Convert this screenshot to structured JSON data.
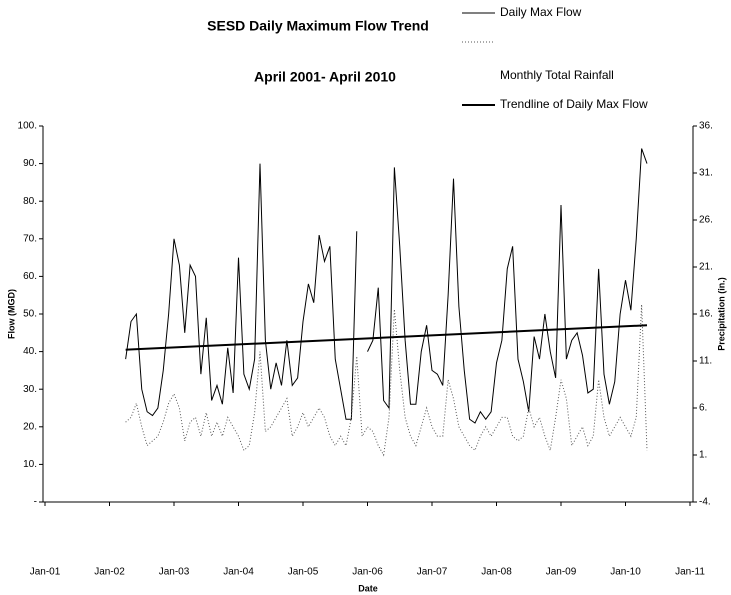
{
  "chart_data": {
    "type": "line",
    "title": "SESD Daily Maximum Flow Trend",
    "subtitle": "April 2001- April 2010",
    "xlabel": "Date",
    "ylabel": "Flow (MGD)",
    "y2label": "Precipitation (in.)",
    "xlim": [
      "2001-01",
      "2011-01"
    ],
    "xticks": [
      {
        "value": "2001-01",
        "label": "Jan-01"
      },
      {
        "value": "2002-01",
        "label": "Jan-02"
      },
      {
        "value": "2003-01",
        "label": "Jan-03"
      },
      {
        "value": "2004-01",
        "label": "Jan-04"
      },
      {
        "value": "2005-01",
        "label": "Jan-05"
      },
      {
        "value": "2006-01",
        "label": "Jan-06"
      },
      {
        "value": "2007-01",
        "label": "Jan-07"
      },
      {
        "value": "2008-01",
        "label": "Jan-08"
      },
      {
        "value": "2009-01",
        "label": "Jan-09"
      },
      {
        "value": "2010-01",
        "label": "Jan-10"
      },
      {
        "value": "2011-01",
        "label": "Jan-11"
      }
    ],
    "ylim": [
      0,
      100
    ],
    "yticks": [
      {
        "value": 0,
        "label": "-"
      },
      {
        "value": 10,
        "label": "10."
      },
      {
        "value": 20,
        "label": "20."
      },
      {
        "value": 30,
        "label": "30."
      },
      {
        "value": 40,
        "label": "40."
      },
      {
        "value": 50,
        "label": "50."
      },
      {
        "value": 60,
        "label": "60."
      },
      {
        "value": 70,
        "label": "70."
      },
      {
        "value": 80,
        "label": "80."
      },
      {
        "value": 90,
        "label": "90."
      },
      {
        "value": 100,
        "label": "100."
      }
    ],
    "y2lim": [
      -4,
      36
    ],
    "y2ticks": [
      {
        "value": -4,
        "label": "-4."
      },
      {
        "value": 1,
        "label": "1."
      },
      {
        "value": 6,
        "label": "6."
      },
      {
        "value": 11,
        "label": "11."
      },
      {
        "value": 16,
        "label": "16."
      },
      {
        "value": 21,
        "label": "21."
      },
      {
        "value": 26,
        "label": "26."
      },
      {
        "value": 31,
        "label": "31."
      },
      {
        "value": 36,
        "label": "36."
      }
    ],
    "x": [
      "2002-04",
      "2002-05",
      "2002-06",
      "2002-07",
      "2002-08",
      "2002-09",
      "2002-10",
      "2002-11",
      "2002-12",
      "2003-01",
      "2003-02",
      "2003-03",
      "2003-04",
      "2003-05",
      "2003-06",
      "2003-07",
      "2003-08",
      "2003-09",
      "2003-10",
      "2003-11",
      "2003-12",
      "2004-01",
      "2004-02",
      "2004-03",
      "2004-04",
      "2004-05",
      "2004-06",
      "2004-07",
      "2004-08",
      "2004-09",
      "2004-10",
      "2004-11",
      "2004-12",
      "2005-01",
      "2005-02",
      "2005-03",
      "2005-04",
      "2005-05",
      "2005-06",
      "2005-07",
      "2005-08",
      "2005-09",
      "2005-10",
      "2005-11",
      "2005-12",
      "2006-01",
      "2006-02",
      "2006-03",
      "2006-04",
      "2006-05",
      "2006-06",
      "2006-07",
      "2006-08",
      "2006-09",
      "2006-10",
      "2006-11",
      "2006-12",
      "2007-01",
      "2007-02",
      "2007-03",
      "2007-04",
      "2007-05",
      "2007-06",
      "2007-07",
      "2007-08",
      "2007-09",
      "2007-10",
      "2007-11",
      "2007-12",
      "2008-01",
      "2008-02",
      "2008-03",
      "2008-04",
      "2008-05",
      "2008-06",
      "2008-07",
      "2008-08",
      "2008-09",
      "2008-10",
      "2008-11",
      "2008-12",
      "2009-01",
      "2009-02",
      "2009-03",
      "2009-04",
      "2009-05",
      "2009-06",
      "2009-07",
      "2009-08",
      "2009-09",
      "2009-10",
      "2009-11",
      "2009-12",
      "2010-01",
      "2010-02",
      "2010-03",
      "2010-04",
      "2010-05"
    ],
    "series": [
      {
        "name": "Daily Max Flow",
        "color": "#000000",
        "style": "solid",
        "width": 1,
        "values": [
          38,
          48,
          50,
          30,
          24,
          23,
          25,
          35,
          50,
          70,
          63,
          45,
          63,
          60,
          34,
          49,
          27,
          31,
          26,
          41,
          29,
          65,
          34,
          30,
          38,
          90,
          43,
          30,
          37,
          31,
          43,
          31,
          33,
          48,
          58,
          53,
          71,
          64,
          68,
          38,
          30,
          22,
          22,
          72,
          null,
          40,
          43,
          57,
          27,
          25,
          89,
          68,
          43,
          26,
          26,
          40,
          47,
          35,
          34,
          31,
          55,
          86,
          52,
          35,
          22,
          21,
          24,
          22,
          24,
          37,
          43,
          62,
          68,
          38,
          32,
          24,
          44,
          38,
          50,
          40,
          33,
          79,
          38,
          43,
          45,
          39,
          29,
          30,
          62,
          34,
          26,
          32,
          50,
          59,
          51,
          70,
          94,
          90
        ]
      },
      {
        "name": "Monthly Total Rainfall",
        "color": "#555555",
        "style": "dotted",
        "width": 1,
        "axis": "y2",
        "values": [
          4.5,
          5,
          6.5,
          4,
          2,
          2.5,
          3,
          4.5,
          6.5,
          7.5,
          6,
          2.5,
          4.5,
          5,
          3,
          5.5,
          3,
          4.5,
          3,
          5,
          4,
          3,
          1.5,
          2,
          5.5,
          12,
          3.5,
          4,
          5,
          6,
          7,
          3,
          4,
          5.5,
          4,
          5,
          6,
          5,
          3,
          2,
          3,
          2,
          5,
          11.5,
          3,
          4,
          3.5,
          2,
          1,
          5,
          16.5,
          10,
          5,
          3,
          2,
          4,
          6,
          4,
          3,
          3,
          9,
          7,
          4,
          3,
          2,
          1.5,
          3,
          4,
          3,
          4,
          5,
          5,
          3,
          2.5,
          3,
          6,
          4,
          5,
          3,
          1.5,
          5,
          9,
          7,
          2,
          3,
          4,
          2,
          3,
          9,
          5,
          3,
          4,
          5,
          4,
          3,
          5,
          17,
          1.5
        ]
      },
      {
        "name": "Trendline of Daily Max Flow",
        "color": "#000000",
        "style": "solid",
        "width": 2,
        "x": [
          "2002-04",
          "2010-05"
        ],
        "values": [
          40.5,
          47
        ]
      }
    ]
  }
}
